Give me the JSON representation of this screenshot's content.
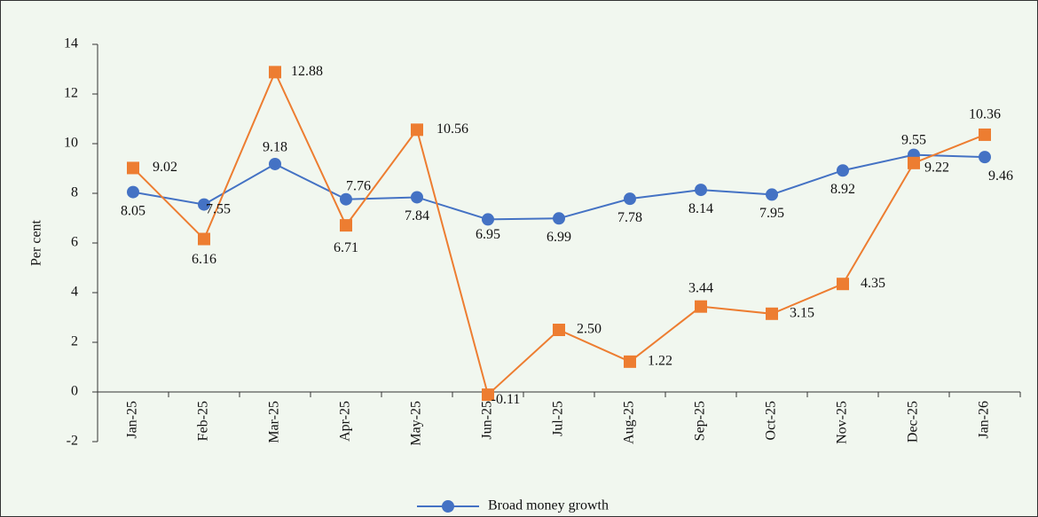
{
  "chart_data": {
    "type": "line",
    "y_label": "Per cent",
    "categories": [
      "Jan-25",
      "Feb-25",
      "Mar-25",
      "Apr-25",
      "May-25",
      "Jun-25",
      "Jul-25",
      "Aug-25",
      "Sep-25",
      "Oct-25",
      "Nov-25",
      "Dec-25",
      "Jan-26"
    ],
    "series": [
      {
        "name": "Broad money growth",
        "color": "#4472c4",
        "marker": "circle",
        "values": [
          8.05,
          7.55,
          9.18,
          7.76,
          7.84,
          6.95,
          6.99,
          7.78,
          8.14,
          7.95,
          8.92,
          9.55,
          9.46
        ]
      },
      {
        "color": "#ed7d31",
        "marker": "square",
        "values": [
          9.02,
          6.16,
          12.88,
          6.71,
          10.56,
          -0.11,
          2.5,
          1.22,
          3.44,
          3.15,
          4.35,
          9.22,
          10.36
        ],
        "value_labels": [
          "9.02",
          "6.16",
          "12.88",
          "6.71",
          "10.56",
          "-0.11",
          "2.50",
          "1.22",
          "3.44",
          "3.15",
          "4.35",
          "9.22",
          "10.36"
        ]
      }
    ],
    "ylim": [
      -2,
      14
    ],
    "yticks": [
      -2,
      0,
      2,
      4,
      6,
      8,
      10,
      12,
      14
    ],
    "grid": false
  }
}
